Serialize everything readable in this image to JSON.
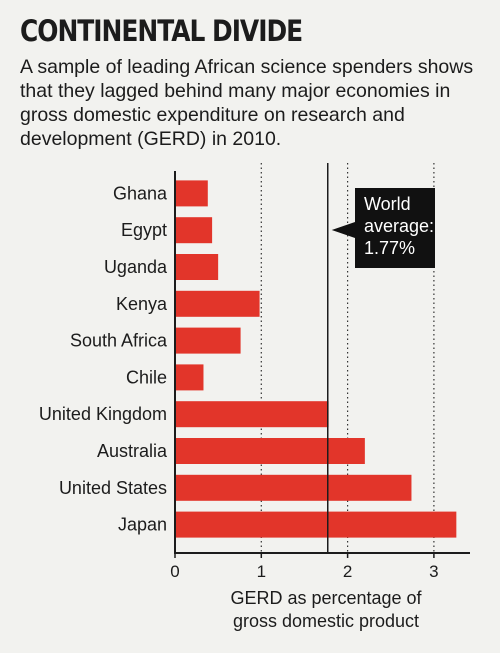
{
  "title": "CONTINENTAL DIVIDE",
  "subtitle": "A sample of leading African science spenders shows that they lagged behind many major economies in gross domestic expenditure on research and development (GERD) in 2010.",
  "colors": {
    "bar": "#e2352a",
    "annotation_bg": "#111111",
    "axis": "#1c1c1c"
  },
  "chart_data": {
    "type": "bar",
    "orientation": "horizontal",
    "categories": [
      "Ghana",
      "Egypt",
      "Uganda",
      "Kenya",
      "South Africa",
      "Chile",
      "United Kingdom",
      "Australia",
      "United States",
      "Japan"
    ],
    "values": [
      0.38,
      0.43,
      0.5,
      0.98,
      0.76,
      0.33,
      1.78,
      2.2,
      2.74,
      3.26
    ],
    "xlim": [
      0,
      3.3
    ],
    "xticks": [
      "0",
      "1",
      "2",
      "3"
    ],
    "xlabel": [
      "GERD as percentage of",
      "gross domestic product"
    ],
    "gridlines": "dotted",
    "reference_line": {
      "value": 1.77,
      "label": [
        "World",
        "average:",
        "1.77%"
      ]
    }
  }
}
